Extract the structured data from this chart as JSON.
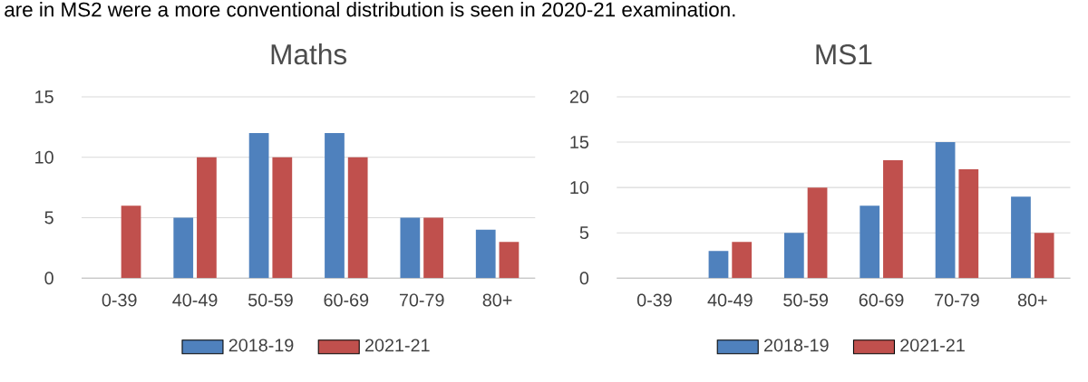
{
  "chart_data": [
    {
      "type": "bar",
      "title": "Maths",
      "annotations": [
        "are in MS2 were a more conventional distribution is seen in 2020-21 examination."
      ],
      "categories": [
        "0-39",
        "40-49",
        "50-59",
        "60-69",
        "70-79",
        "80+"
      ],
      "series": [
        {
          "name": "2018-19",
          "color": "#4f81bd",
          "values": [
            0,
            5,
            12,
            12,
            5,
            4
          ]
        },
        {
          "name": "2021-21",
          "color": "#c0504d",
          "values": [
            6,
            10,
            10,
            10,
            5,
            3
          ]
        }
      ],
      "ylim": [
        0,
        15
      ],
      "yticks": [
        0,
        5,
        10,
        15
      ],
      "grid": "y",
      "legend": "bottom"
    },
    {
      "type": "bar",
      "title": "MS1",
      "categories": [
        "0-39",
        "40-49",
        "50-59",
        "60-69",
        "70-79",
        "80+"
      ],
      "series": [
        {
          "name": "2018-19",
          "color": "#4f81bd",
          "values": [
            0,
            3,
            5,
            8,
            15,
            9
          ]
        },
        {
          "name": "2021-21",
          "color": "#c0504d",
          "values": [
            0,
            4,
            10,
            13,
            12,
            5
          ]
        }
      ],
      "ylim": [
        0,
        20
      ],
      "yticks": [
        0,
        5,
        10,
        15,
        20
      ],
      "grid": "y",
      "legend": "bottom"
    }
  ]
}
